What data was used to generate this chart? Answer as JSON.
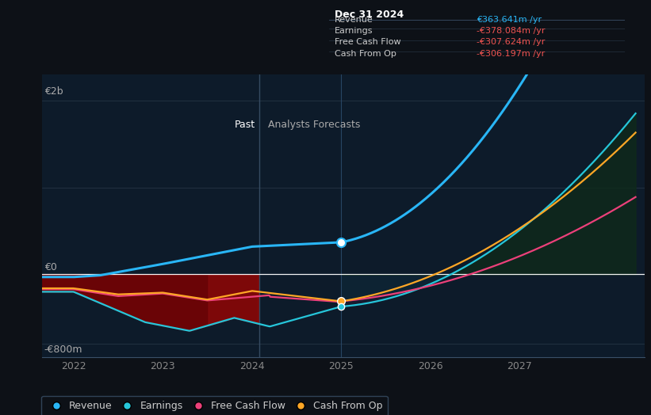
{
  "bg_color": "#0d1117",
  "plot_bg_color": "#0d1b2a",
  "revenue_color": "#29b6f6",
  "earnings_color": "#26c6da",
  "fcf_color": "#ec407a",
  "cashop_color": "#ffa726",
  "divider_x": 2024.08,
  "highlight_x": 2025.0,
  "past_label": "Past",
  "forecast_label": "Analysts Forecasts",
  "ylabel_top": "€2b",
  "ylabel_zero": "€0",
  "ylabel_bottom": "-€800m",
  "x_ticks": [
    2022,
    2023,
    2024,
    2025,
    2026,
    2027
  ],
  "ylim": [
    -950,
    2300
  ],
  "xlim": [
    2021.65,
    2028.4
  ],
  "tooltip_title": "Dec 31 2024",
  "tooltip_rows": [
    {
      "label": "Revenue",
      "value": "€363.641m /yr",
      "value_color": "#29b6f6"
    },
    {
      "label": "Earnings",
      "value": "-€378.084m /yr",
      "value_color": "#ef5350"
    },
    {
      "label": "Free Cash Flow",
      "value": "-€307.624m /yr",
      "value_color": "#ef5350"
    },
    {
      "label": "Cash From Op",
      "value": "-€306.197m /yr",
      "value_color": "#ef5350"
    }
  ]
}
